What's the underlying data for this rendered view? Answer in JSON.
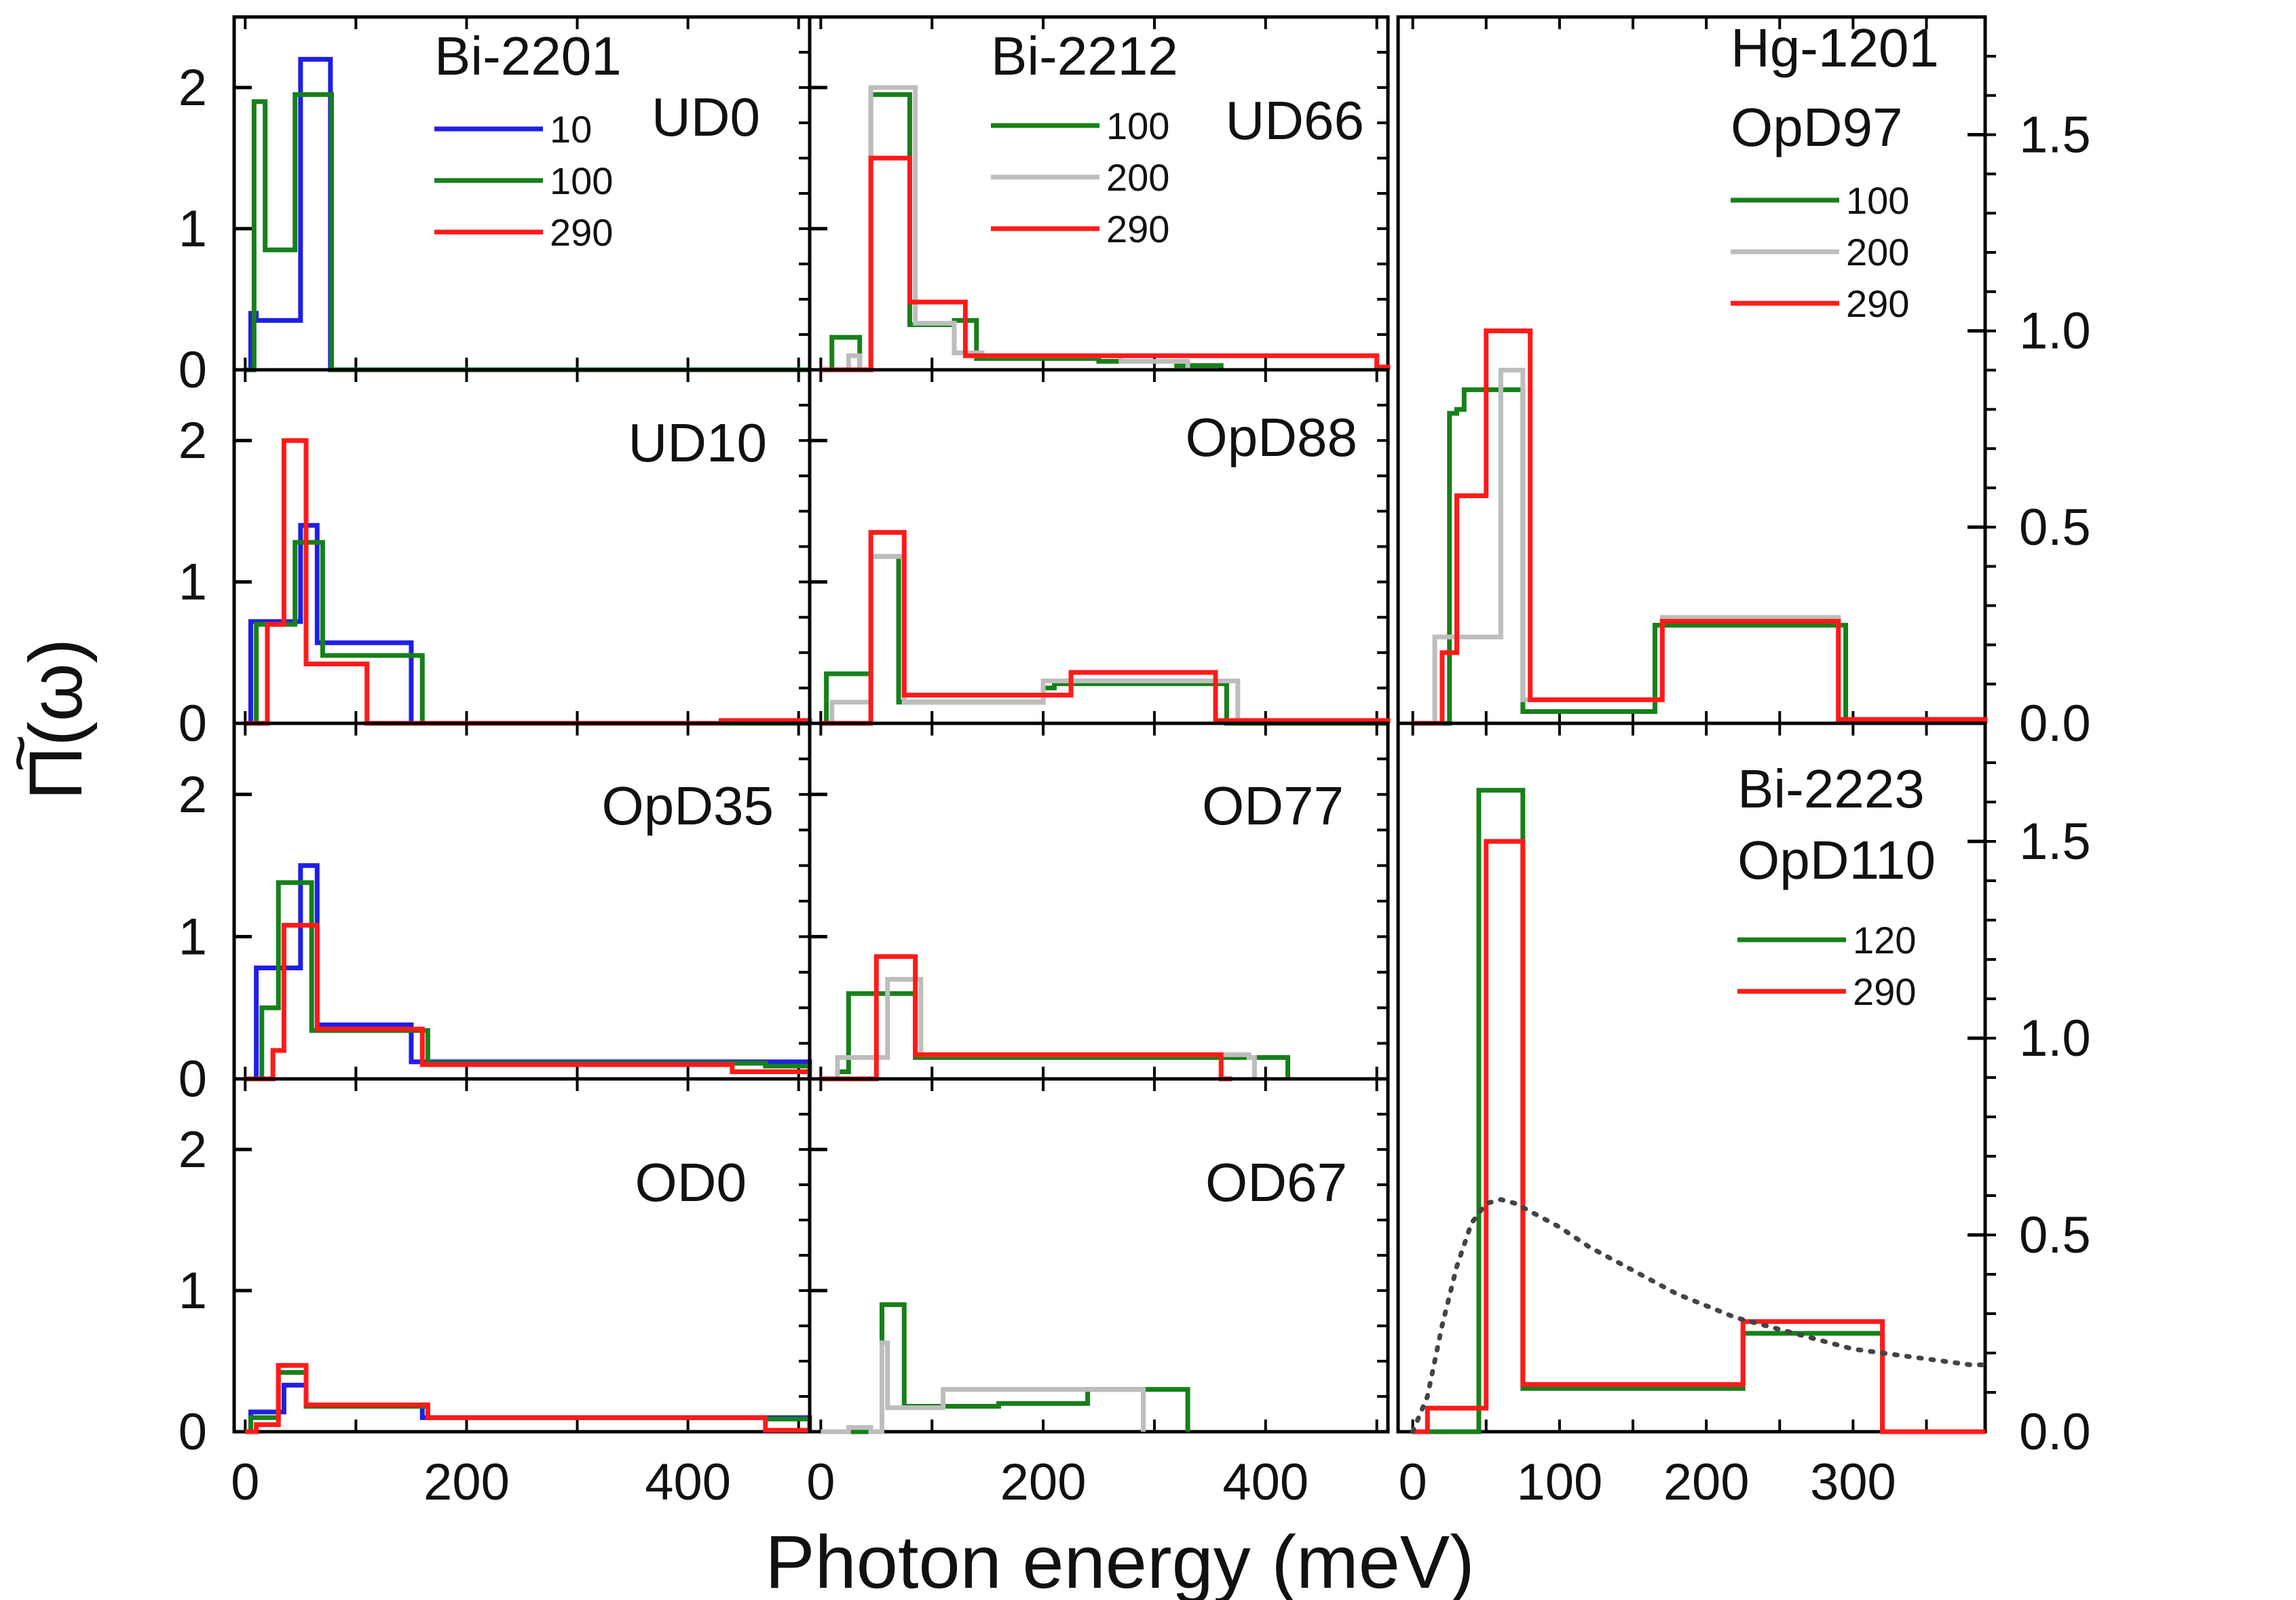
{
  "figure": {
    "xlabel": "Photon energy (meV)",
    "ylabel": "Π(ω)",
    "ylabel_tilde": "~"
  },
  "colors": {
    "10": "#1f1fe6",
    "100": "#17801a",
    "120": "#17801a",
    "200": "#bdbdbd",
    "290": "#ff1a1a",
    "model": "#444444"
  },
  "chart_data": [
    {
      "type": "line",
      "panel": "Bi-2201 UD0",
      "title": "UD0",
      "material": "Bi-2201",
      "xlim": [
        -10,
        510
      ],
      "ylim": [
        0,
        2.5
      ],
      "xticks": [],
      "yticks": [
        0,
        1,
        2
      ],
      "legend": [
        "10",
        "100",
        "290"
      ],
      "series": [
        {
          "name": "10",
          "step_x": [
            0,
            5,
            10,
            50,
            60,
            77,
            77,
            510
          ],
          "step_y": [
            0,
            0.4,
            0.35,
            2.2,
            2.2,
            0,
            0,
            0
          ]
        },
        {
          "name": "100",
          "step_x": [
            0,
            8,
            18,
            45,
            55,
            78,
            78,
            510
          ],
          "step_y": [
            0,
            1.9,
            0.85,
            1.95,
            1.95,
            0,
            0,
            0
          ]
        }
      ]
    },
    {
      "type": "line",
      "panel": "Bi-2201 UD10",
      "title": "UD10",
      "xlim": [
        -10,
        510
      ],
      "ylim": [
        0,
        2.5
      ],
      "xticks": [],
      "yticks": [
        0,
        1,
        2
      ],
      "series": [
        {
          "name": "10",
          "step_x": [
            0,
            5,
            40,
            50,
            65,
            150,
            510
          ],
          "step_y": [
            0,
            0.72,
            0.72,
            1.4,
            0.57,
            0,
            0
          ]
        },
        {
          "name": "100",
          "step_x": [
            0,
            10,
            35,
            45,
            70,
            160,
            510
          ],
          "step_y": [
            0,
            0.7,
            0.7,
            1.28,
            0.48,
            0,
            0
          ]
        },
        {
          "name": "290",
          "step_x": [
            0,
            20,
            35,
            55,
            110,
            260,
            430,
            510
          ],
          "step_y": [
            0,
            0.7,
            2.0,
            0.42,
            0,
            0,
            0.02,
            0
          ]
        }
      ]
    },
    {
      "type": "line",
      "panel": "Bi-2201 OpD35",
      "title": "OpD35",
      "xlim": [
        -10,
        510
      ],
      "ylim": [
        0,
        2.5
      ],
      "xticks": [],
      "yticks": [
        0,
        1,
        2
      ],
      "series": [
        {
          "name": "10",
          "step_x": [
            0,
            10,
            40,
            50,
            65,
            150,
            510
          ],
          "step_y": [
            0,
            0.78,
            0.78,
            1.5,
            0.38,
            0.12,
            0
          ]
        },
        {
          "name": "100",
          "step_x": [
            0,
            15,
            25,
            30,
            60,
            165,
            470,
            510
          ],
          "step_y": [
            0,
            0.5,
            0.5,
            1.38,
            0.34,
            0.11,
            0.09,
            0
          ]
        },
        {
          "name": "290",
          "step_x": [
            0,
            25,
            35,
            65,
            160,
            440,
            510
          ],
          "step_y": [
            0,
            0.2,
            1.08,
            0.35,
            0.1,
            0.05,
            0
          ]
        }
      ]
    },
    {
      "type": "line",
      "panel": "Bi-2201 OD0",
      "title": "OD0",
      "xlim": [
        -10,
        510
      ],
      "ylim": [
        0,
        2.5
      ],
      "xticks": [
        0,
        200,
        400
      ],
      "yticks": [
        0,
        1,
        2
      ],
      "series": [
        {
          "name": "10",
          "step_x": [
            0,
            5,
            35,
            55,
            160,
            510
          ],
          "step_y": [
            0,
            0.14,
            0.33,
            0.18,
            0.1,
            0
          ]
        },
        {
          "name": "100",
          "step_x": [
            0,
            5,
            30,
            55,
            165,
            470,
            510
          ],
          "step_y": [
            0,
            0.1,
            0.42,
            0.18,
            0.1,
            0.09,
            0
          ]
        },
        {
          "name": "290",
          "step_x": [
            0,
            10,
            30,
            55,
            165,
            470,
            510
          ],
          "step_y": [
            0,
            0.05,
            0.47,
            0.19,
            0.1,
            0.01,
            0
          ]
        }
      ]
    },
    {
      "type": "line",
      "panel": "Bi-2212 UD66",
      "title": "UD66",
      "material": "Bi-2212",
      "xlim": [
        -10,
        510
      ],
      "ylim": [
        0,
        2.5
      ],
      "xticks": [],
      "yticks": [
        0,
        1,
        2
      ],
      "legend": [
        "100",
        "200",
        "290"
      ],
      "series": [
        {
          "name": "100",
          "step_x": [
            0,
            10,
            25,
            35,
            45,
            80,
            120,
            140,
            250,
            320,
            360
          ],
          "step_y": [
            0,
            0.23,
            0.23,
            0,
            1.95,
            0.32,
            0.35,
            0.08,
            0.06,
            0.03,
            0
          ]
        },
        {
          "name": "200",
          "step_x": [
            0,
            10,
            25,
            35,
            45,
            85,
            120,
            145,
            270,
            330
          ],
          "step_y": [
            0,
            0,
            0.1,
            0,
            2.0,
            0.33,
            0.12,
            0.1,
            0.06,
            0
          ]
        },
        {
          "name": "290",
          "step_x": [
            0,
            35,
            45,
            80,
            130,
            500,
            510
          ],
          "step_y": [
            0,
            0,
            1.5,
            0.48,
            0.1,
            0.02,
            0
          ]
        }
      ]
    },
    {
      "type": "line",
      "panel": "Bi-2212 OpD88",
      "title": "OpD88",
      "xlim": [
        -10,
        510
      ],
      "ylim": [
        0,
        2.5
      ],
      "xticks": [],
      "yticks": [
        0,
        1,
        2
      ],
      "series": [
        {
          "name": "100",
          "step_x": [
            0,
            5,
            35,
            45,
            70,
            200,
            210,
            270,
            365,
            510
          ],
          "step_y": [
            0,
            0.35,
            0.35,
            1.18,
            0.15,
            0.25,
            0.28,
            0.28,
            0,
            0
          ]
        },
        {
          "name": "200",
          "step_x": [
            0,
            10,
            35,
            45,
            75,
            200,
            215,
            360,
            375
          ],
          "step_y": [
            0,
            0.15,
            0.15,
            1.18,
            0.15,
            0.3,
            0.3,
            0.3,
            0
          ]
        },
        {
          "name": "290",
          "step_x": [
            0,
            40,
            45,
            75,
            225,
            355,
            510
          ],
          "step_y": [
            0,
            0,
            1.35,
            0.2,
            0.36,
            0.02,
            0
          ]
        }
      ]
    },
    {
      "type": "line",
      "panel": "Bi-2212 OD77",
      "title": "OD77",
      "xlim": [
        -10,
        510
      ],
      "ylim": [
        0,
        2.5
      ],
      "xticks": [],
      "yticks": [
        0,
        1,
        2
      ],
      "series": [
        {
          "name": "100",
          "step_x": [
            0,
            15,
            25,
            85,
            410,
            420
          ],
          "step_y": [
            0,
            0.05,
            0.6,
            0.15,
            0.15,
            0
          ]
        },
        {
          "name": "200",
          "step_x": [
            0,
            15,
            60,
            90,
            385,
            390
          ],
          "step_y": [
            0,
            0.15,
            0.7,
            0.17,
            0.15,
            0
          ]
        },
        {
          "name": "290",
          "step_x": [
            0,
            40,
            50,
            85,
            360,
            370
          ],
          "step_y": [
            0,
            0,
            0.86,
            0.17,
            0,
            0
          ]
        }
      ]
    },
    {
      "type": "line",
      "panel": "Bi-2212 OD67",
      "title": "OD67",
      "xlim": [
        -10,
        510
      ],
      "ylim": [
        0,
        2.5
      ],
      "xticks": [
        0,
        200,
        400
      ],
      "yticks": [
        0,
        1,
        2
      ],
      "series": [
        {
          "name": "100",
          "step_x": [
            0,
            45,
            55,
            75,
            160,
            240,
            320,
            330
          ],
          "step_y": [
            0,
            0,
            0.9,
            0.18,
            0.2,
            0.3,
            0.3,
            0
          ]
        },
        {
          "name": "200",
          "step_x": [
            0,
            10,
            25,
            45,
            55,
            60,
            110,
            280,
            290
          ],
          "step_y": [
            0,
            0,
            0.03,
            0,
            0.63,
            0.17,
            0.3,
            0.3,
            0
          ]
        }
      ]
    },
    {
      "type": "line",
      "panel": "Hg-1201 OpD97",
      "title": "OpD97",
      "material": "Hg-1201",
      "xlim": [
        -10,
        390
      ],
      "ylim": [
        0,
        1.8
      ],
      "xticks": [],
      "yticks": [
        0.0,
        0.5,
        1.0,
        1.5
      ],
      "legend": [
        "100",
        "200",
        "290"
      ],
      "series": [
        {
          "name": "100",
          "step_x": [
            0,
            25,
            30,
            35,
            75,
            165,
            175,
            290,
            295
          ],
          "step_y": [
            0,
            0.79,
            0.8,
            0.85,
            0.03,
            0.25,
            0.25,
            0.25,
            0
          ]
        },
        {
          "name": "200",
          "step_x": [
            0,
            15,
            40,
            60,
            75,
            170,
            285,
            290
          ],
          "step_y": [
            0,
            0.22,
            0.22,
            0.9,
            0.06,
            0.27,
            0.27,
            0
          ]
        },
        {
          "name": "290",
          "step_x": [
            0,
            20,
            30,
            50,
            80,
            170,
            290,
            390
          ],
          "step_y": [
            0,
            0.18,
            0.58,
            1.0,
            0.06,
            0.26,
            0.01,
            0
          ]
        }
      ]
    },
    {
      "type": "line",
      "panel": "Bi-2223 OpD110",
      "title": "OpD110",
      "material": "Bi-2223",
      "xlim": [
        -10,
        390
      ],
      "ylim": [
        0,
        1.8
      ],
      "xticks": [
        0,
        100,
        200,
        300
      ],
      "yticks": [
        0.0,
        0.5,
        1.0,
        1.5
      ],
      "legend": [
        "120",
        "290"
      ],
      "series": [
        {
          "name": "120",
          "step_x": [
            0,
            45,
            75,
            225,
            320,
            390
          ],
          "step_y": [
            0,
            1.63,
            0.11,
            0.25,
            0.0,
            0
          ]
        },
        {
          "name": "290",
          "step_x": [
            0,
            10,
            50,
            75,
            225,
            320,
            390
          ],
          "step_y": [
            0,
            0.06,
            1.5,
            0.12,
            0.28,
            0,
            0
          ]
        }
      ],
      "model_curve": {
        "x": [
          0,
          10,
          20,
          30,
          40,
          50,
          60,
          70,
          80,
          100,
          120,
          140,
          160,
          180,
          200,
          220,
          240,
          260,
          280,
          300,
          320,
          340,
          360,
          380,
          390
        ],
        "y": [
          0.0,
          0.09,
          0.27,
          0.42,
          0.53,
          0.58,
          0.59,
          0.58,
          0.56,
          0.52,
          0.47,
          0.43,
          0.39,
          0.35,
          0.32,
          0.29,
          0.27,
          0.25,
          0.23,
          0.21,
          0.2,
          0.19,
          0.18,
          0.17,
          0.17
        ]
      }
    }
  ]
}
